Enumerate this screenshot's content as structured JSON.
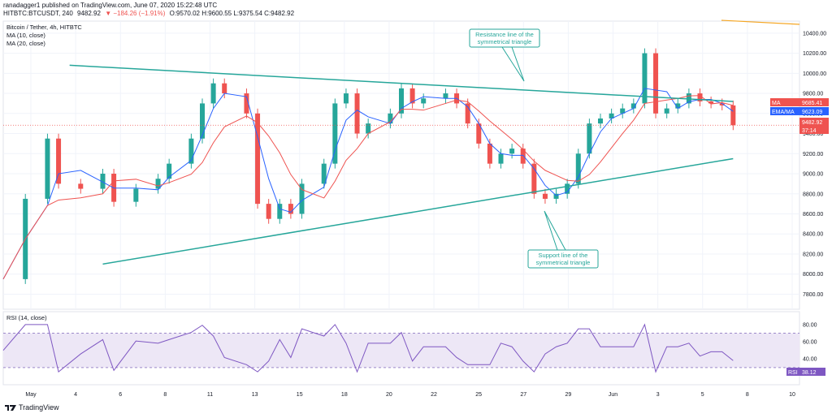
{
  "header": {
    "line1": "ranadagger1 published on TradingView.com, June 07, 2020 15:22:48 UTC",
    "symbol": "HITBTC:BTCUSDT, 240",
    "last": "9482.92",
    "change": "▼ −184.26 (−1.91%)",
    "ohlc": "O:9570.02 H:9600.55 L:9375.54 C:9482.92",
    "title": "Bitcoin / Tether, 4h, HITBTC"
  },
  "legend": {
    "ma10": "MA (10, close)",
    "ma20": "MA (20, close)",
    "rsi": "RSI (14, close)"
  },
  "annotations": {
    "resistance": [
      "Resistance line of the",
      "symmetrical triangle"
    ],
    "support": [
      "Support line of the",
      "symmetrical triangle"
    ]
  },
  "price_tags": [
    {
      "label": "MA",
      "value": "9685.41",
      "color": "#ef5350"
    },
    {
      "label": "EMA/MA",
      "value": "9623.09",
      "color": "#2962ff"
    },
    {
      "label": "",
      "value": "9482.92",
      "color": "#ef5350"
    },
    {
      "label": "",
      "value": "37:14",
      "color": "#ef5350"
    }
  ],
  "rsi_tag": {
    "label": "RSI",
    "value": "38.12"
  },
  "footer": {
    "brand": "TradingView"
  },
  "colors": {
    "up": "#26a69a",
    "down": "#ef5350",
    "ma_fast": "#2962ff",
    "ma_slow": "#ef5350",
    "trendline": "#26a69a",
    "rsi_line": "#7e57c2",
    "rsi_band": "#ede7f6",
    "orange_line": "#f5a623"
  },
  "chart_data": {
    "type": "line",
    "title": "Bitcoin / Tether, 4h, HITBTC",
    "x_labels": [
      "May",
      "4",
      "6",
      "8",
      "11",
      "13",
      "15",
      "18",
      "20",
      "22",
      "25",
      "27",
      "29",
      "Jun",
      "3",
      "5",
      "8",
      "10"
    ],
    "price_ticks": [
      7800,
      8000,
      8200,
      8400,
      8600,
      8800,
      9000,
      9200,
      9400,
      9600,
      9800,
      10000,
      10200,
      10400
    ],
    "rsi_ticks": [
      40,
      60,
      80
    ],
    "rsi_band": [
      30,
      70
    ],
    "close_path": [
      {
        "x": 0,
        "y": 7950
      },
      {
        "x": 2,
        "y": 8750
      },
      {
        "x": 4,
        "y": 9350
      },
      {
        "x": 5,
        "y": 8900
      },
      {
        "x": 7,
        "y": 8850
      },
      {
        "x": 9,
        "y": 9000
      },
      {
        "x": 10,
        "y": 8720
      },
      {
        "x": 12,
        "y": 8850
      },
      {
        "x": 14,
        "y": 8950
      },
      {
        "x": 15,
        "y": 9100
      },
      {
        "x": 17,
        "y": 9350
      },
      {
        "x": 18,
        "y": 9700
      },
      {
        "x": 19,
        "y": 9900
      },
      {
        "x": 20,
        "y": 9800
      },
      {
        "x": 22,
        "y": 9600
      },
      {
        "x": 23,
        "y": 8700
      },
      {
        "x": 24,
        "y": 8550
      },
      {
        "x": 25,
        "y": 8700
      },
      {
        "x": 26,
        "y": 8600
      },
      {
        "x": 27,
        "y": 8900
      },
      {
        "x": 29,
        "y": 9100
      },
      {
        "x": 30,
        "y": 9700
      },
      {
        "x": 31,
        "y": 9800
      },
      {
        "x": 32,
        "y": 9400
      },
      {
        "x": 33,
        "y": 9500
      },
      {
        "x": 35,
        "y": 9600
      },
      {
        "x": 36,
        "y": 9850
      },
      {
        "x": 37,
        "y": 9700
      },
      {
        "x": 38,
        "y": 9750
      },
      {
        "x": 40,
        "y": 9800
      },
      {
        "x": 41,
        "y": 9700
      },
      {
        "x": 42,
        "y": 9500
      },
      {
        "x": 43,
        "y": 9300
      },
      {
        "x": 44,
        "y": 9100
      },
      {
        "x": 45,
        "y": 9200
      },
      {
        "x": 46,
        "y": 9250
      },
      {
        "x": 47,
        "y": 9100
      },
      {
        "x": 48,
        "y": 8800
      },
      {
        "x": 49,
        "y": 8750
      },
      {
        "x": 50,
        "y": 8800
      },
      {
        "x": 51,
        "y": 8900
      },
      {
        "x": 52,
        "y": 9200
      },
      {
        "x": 53,
        "y": 9500
      },
      {
        "x": 54,
        "y": 9550
      },
      {
        "x": 55,
        "y": 9600
      },
      {
        "x": 56,
        "y": 9650
      },
      {
        "x": 57,
        "y": 9700
      },
      {
        "x": 58,
        "y": 10200
      },
      {
        "x": 59,
        "y": 9600
      },
      {
        "x": 60,
        "y": 9650
      },
      {
        "x": 61,
        "y": 9700
      },
      {
        "x": 62,
        "y": 9800
      },
      {
        "x": 63,
        "y": 9720
      },
      {
        "x": 64,
        "y": 9700
      },
      {
        "x": 65,
        "y": 9680
      },
      {
        "x": 66,
        "y": 9483
      }
    ],
    "trendlines": [
      {
        "name": "resistance",
        "x1": 6,
        "y1": 10080,
        "x2": 66,
        "y2": 9720
      },
      {
        "name": "support",
        "x1": 9,
        "y1": 8100,
        "x2": 66,
        "y2": 9150
      }
    ],
    "last_price": 9482.92,
    "rsi_last": 38.12
  }
}
